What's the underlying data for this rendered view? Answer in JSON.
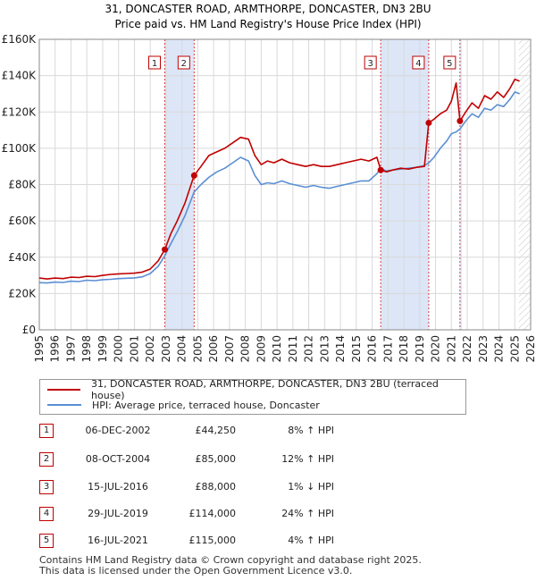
{
  "chart_data": {
    "type": "line",
    "title": "31, DONCASTER ROAD, ARMTHORPE, DONCASTER, DN3 2BU",
    "subtitle": "Price paid vs. HM Land Registry's House Price Index (HPI)",
    "xlim": [
      1995,
      2026
    ],
    "ylim": [
      0,
      160000
    ],
    "x_ticks": [
      "1995",
      "1996",
      "1997",
      "1998",
      "1999",
      "2000",
      "2001",
      "2002",
      "2003",
      "2004",
      "2005",
      "2006",
      "2007",
      "2008",
      "2009",
      "2010",
      "2011",
      "2012",
      "2013",
      "2014",
      "2015",
      "2016",
      "2017",
      "2018",
      "2019",
      "2020",
      "2021",
      "2022",
      "2023",
      "2024",
      "2025",
      "2026"
    ],
    "y_ticks": [
      {
        "value": 0,
        "label": "£0"
      },
      {
        "value": 20000,
        "label": "£20K"
      },
      {
        "value": 40000,
        "label": "£40K"
      },
      {
        "value": 60000,
        "label": "£60K"
      },
      {
        "value": 80000,
        "label": "£80K"
      },
      {
        "value": 100000,
        "label": "£100K"
      },
      {
        "value": 120000,
        "label": "£120K"
      },
      {
        "value": 140000,
        "label": "£140K"
      },
      {
        "value": 160000,
        "label": "£160K"
      }
    ],
    "grid": true,
    "series": [
      {
        "name": "31, DONCASTER ROAD, ARMTHORPE, DONCASTER, DN3 2BU (terraced house)",
        "color": "#c00000",
        "x": [
          1995.0,
          1995.5,
          1996.0,
          1996.5,
          1997.0,
          1997.5,
          1998.0,
          1998.5,
          1999.0,
          1999.5,
          2000.0,
          2000.5,
          2001.0,
          2001.5,
          2002.0,
          2002.5,
          2002.92,
          2003.3,
          2003.7,
          2004.2,
          2004.77,
          2005.2,
          2005.7,
          2006.2,
          2006.7,
          2007.2,
          2007.7,
          2008.2,
          2008.6,
          2009.0,
          2009.4,
          2009.8,
          2010.3,
          2010.8,
          2011.3,
          2011.8,
          2012.3,
          2012.8,
          2013.3,
          2013.8,
          2014.3,
          2014.8,
          2015.3,
          2015.8,
          2016.3,
          2016.54,
          2016.9,
          2017.3,
          2017.8,
          2018.3,
          2018.8,
          2019.3,
          2019.57,
          2019.9,
          2020.3,
          2020.7,
          2021.0,
          2021.3,
          2021.54,
          2021.9,
          2022.3,
          2022.7,
          2023.1,
          2023.5,
          2023.9,
          2024.3,
          2024.7,
          2025.0,
          2025.3
        ],
        "y": [
          28500,
          28000,
          28500,
          28200,
          29000,
          28800,
          29500,
          29300,
          30000,
          30500,
          30800,
          31000,
          31200,
          31800,
          33500,
          38000,
          44250,
          53000,
          60000,
          70000,
          85000,
          90000,
          96000,
          98000,
          100000,
          103000,
          106000,
          105000,
          96000,
          91000,
          93000,
          92000,
          94000,
          92000,
          91000,
          90000,
          91000,
          90000,
          90000,
          91000,
          92000,
          93000,
          94000,
          93000,
          95000,
          88000,
          87000,
          88000,
          89000,
          88500,
          89500,
          90000,
          114000,
          116000,
          119000,
          121000,
          126000,
          136000,
          115000,
          120000,
          125000,
          122000,
          129000,
          127000,
          131000,
          128000,
          133000,
          138000,
          137000
        ]
      },
      {
        "name": "HPI: Average price, terraced house, Doncaster",
        "color": "#5b8fd4",
        "x": [
          1995.0,
          1995.5,
          1996.0,
          1996.5,
          1997.0,
          1997.5,
          1998.0,
          1998.5,
          1999.0,
          1999.5,
          2000.0,
          2000.5,
          2001.0,
          2001.5,
          2002.0,
          2002.5,
          2002.92,
          2003.3,
          2003.7,
          2004.2,
          2004.77,
          2005.2,
          2005.7,
          2006.2,
          2006.7,
          2007.2,
          2007.7,
          2008.2,
          2008.6,
          2009.0,
          2009.4,
          2009.8,
          2010.3,
          2010.8,
          2011.3,
          2011.8,
          2012.3,
          2012.8,
          2013.3,
          2013.8,
          2014.3,
          2014.8,
          2015.3,
          2015.8,
          2016.3,
          2016.54,
          2016.9,
          2017.3,
          2017.8,
          2018.3,
          2018.8,
          2019.3,
          2019.57,
          2019.9,
          2020.3,
          2020.7,
          2021.0,
          2021.3,
          2021.54,
          2021.9,
          2022.3,
          2022.7,
          2023.1,
          2023.5,
          2023.9,
          2024.3,
          2024.7,
          2025.0,
          2025.3
        ],
        "y": [
          26000,
          25800,
          26300,
          26100,
          26800,
          26600,
          27300,
          27100,
          27600,
          27800,
          28200,
          28400,
          28600,
          29200,
          31000,
          35000,
          40900,
          47500,
          54000,
          63000,
          75900,
          80000,
          84000,
          87000,
          89000,
          92000,
          95000,
          93000,
          85000,
          80000,
          81000,
          80500,
          82000,
          80500,
          79500,
          78500,
          79500,
          78500,
          78000,
          79000,
          80000,
          81000,
          82000,
          82000,
          86000,
          88900,
          87500,
          88000,
          88500,
          89000,
          89500,
          90500,
          91900,
          95000,
          100000,
          104000,
          108000,
          109000,
          110600,
          115000,
          119000,
          117000,
          122000,
          121000,
          124000,
          123000,
          127000,
          131000,
          130000
        ]
      }
    ],
    "sales": [
      {
        "label": "1",
        "x": 2002.92,
        "y": 44250
      },
      {
        "label": "2",
        "x": 2004.77,
        "y": 85000
      },
      {
        "label": "3",
        "x": 2016.54,
        "y": 88000
      },
      {
        "label": "4",
        "x": 2019.57,
        "y": 114000
      },
      {
        "label": "5",
        "x": 2021.54,
        "y": 115000
      }
    ],
    "shaded_ranges": [
      [
        2002.92,
        2004.77
      ],
      [
        2016.54,
        2019.57
      ],
      [
        2021.54,
        2021.56
      ]
    ],
    "forecast_from": 2025.25
  },
  "colors": {
    "property_line": "#c00000",
    "hpi_line": "#5b8fd4",
    "shade": "#dde6f7",
    "grid": "#d9d9d9",
    "hatch": "#cccccc"
  },
  "legend": {
    "property": "31, DONCASTER ROAD, ARMTHORPE, DONCASTER, DN3 2BU (terraced house)",
    "hpi": "HPI: Average price, terraced house, Doncaster"
  },
  "sales_table": [
    {
      "num": "1",
      "date": "06-DEC-2002",
      "price": "£44,250",
      "hpi": "8% ↑ HPI"
    },
    {
      "num": "2",
      "date": "08-OCT-2004",
      "price": "£85,000",
      "hpi": "12% ↑ HPI"
    },
    {
      "num": "3",
      "date": "15-JUL-2016",
      "price": "£88,000",
      "hpi": "1% ↓ HPI"
    },
    {
      "num": "4",
      "date": "29-JUL-2019",
      "price": "£114,000",
      "hpi": "24% ↑ HPI"
    },
    {
      "num": "5",
      "date": "16-JUL-2021",
      "price": "£115,000",
      "hpi": "4% ↑ HPI"
    }
  ],
  "footer": {
    "line1": "Contains HM Land Registry data © Crown copyright and database right 2025.",
    "line2": "This data is licensed under the Open Government Licence v3.0."
  }
}
